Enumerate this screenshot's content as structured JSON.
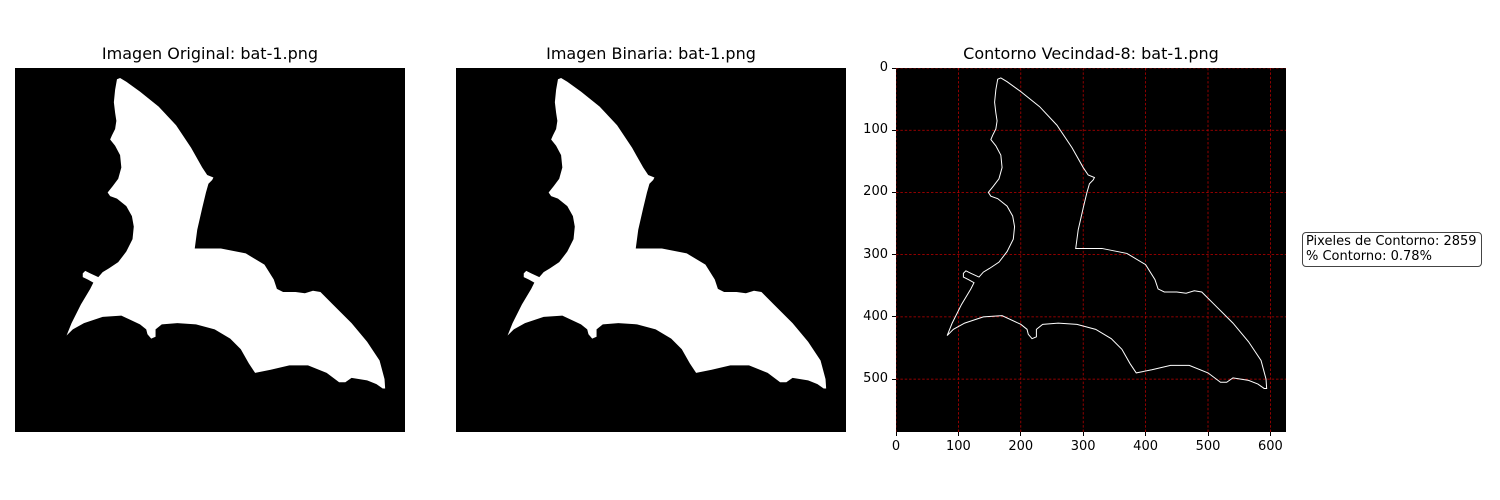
{
  "panels": {
    "original": {
      "title": "Imagen Original: bat-1.png"
    },
    "binary": {
      "title": "Imagen Binaria: bat-1.png"
    },
    "contour": {
      "title": "Contorno Vecindad-8: bat-1.png"
    }
  },
  "stats": {
    "contour_pixels_label": "Pixeles de Contorno: 2859",
    "contour_percent_label": "% Contorno: 0.78%"
  },
  "colors": {
    "grid": "#ff0000",
    "silhouette": "#ffffff",
    "background": "#000000",
    "contour": "#ffffff"
  },
  "chart_data": {
    "type": "image",
    "title": "Contorno Vecindad-8: bat-1.png",
    "xlim": [
      0,
      625
    ],
    "ylim": [
      585,
      0
    ],
    "xticks": [
      0,
      100,
      200,
      300,
      400,
      500,
      600
    ],
    "yticks": [
      0,
      100,
      200,
      300,
      400,
      500
    ],
    "xtick_labels": [
      "0",
      "100",
      "200",
      "300",
      "400",
      "500",
      "600"
    ],
    "ytick_labels": [
      "0",
      "100",
      "200",
      "300",
      "400",
      "500"
    ],
    "grid": true,
    "contour_pixels": 2859,
    "contour_percent": 0.78
  }
}
